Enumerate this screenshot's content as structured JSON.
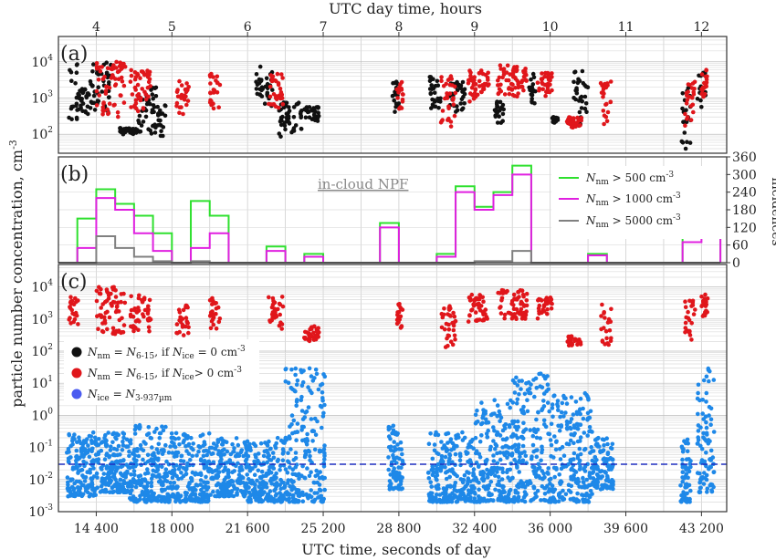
{
  "figure": {
    "top_axis_label": "UTC day time, hours",
    "bottom_axis_label": "UTC time, seconds of day",
    "y_axis_label": "particle number concentration, cm",
    "y_axis_label_sup": "-3",
    "right_axis_label": "incidences",
    "top_ticks": [
      "4",
      "5",
      "6",
      "7",
      "8",
      "9",
      "10",
      "11",
      "12"
    ],
    "bottom_ticks": [
      "14 400",
      "18 000",
      "21 600",
      "25 200",
      "28 800",
      "32 400",
      "36 000",
      "39 600",
      "43 200"
    ]
  },
  "panels": {
    "a": {
      "label": "(a)"
    },
    "b": {
      "label": "(b)",
      "annotation": "in-cloud NPF"
    },
    "c": {
      "label": "(c)"
    }
  },
  "colors": {
    "black_points": "#111111",
    "red_points": "#e0161b",
    "blue_points": "#1e88e8",
    "legend_blue": "#4a5bf0",
    "green_hist": "#2fe02f",
    "magenta_hist": "#e020e0",
    "grey_hist": "#808080",
    "dashed_line": "#1f2fbf"
  },
  "legend_b": [
    {
      "sym": "N",
      "sub": "nm",
      "text": " > 500 cm",
      "sup": "-3"
    },
    {
      "sym": "N",
      "sub": "nm",
      "text": " > 1000 cm",
      "sup": "-3"
    },
    {
      "sym": "N",
      "sub": "nm",
      "text": " > 5000 cm",
      "sup": "-3"
    }
  ],
  "legend_c": [
    {
      "a": "N",
      "asub": "nm",
      "eq": " = ",
      "b": "N",
      "bsub": "6-15",
      "if": ", if ",
      "c": "N",
      "csub": "ice",
      "cond": " = 0 cm",
      "sup": "-3"
    },
    {
      "a": "N",
      "asub": "nm",
      "eq": " = ",
      "b": "N",
      "bsub": "6-15",
      "if": ", if ",
      "c": "N",
      "csub": "ice",
      "cond": "> 0 cm",
      "sup": "-3"
    },
    {
      "a": "N",
      "asub": "ice",
      "eq": " = ",
      "b": "N",
      "bsub": "3-937µm"
    }
  ],
  "chart_data": [
    {
      "type": "scatter",
      "panel": "a",
      "x_unit": "seconds of day",
      "xlim": [
        12600,
        44400
      ],
      "ylim": [
        30,
        50000
      ],
      "y_scale": "log",
      "y_ticks": [
        "10",
        "10",
        "10"
      ],
      "y_tick_exp": [
        "2",
        "3",
        "4"
      ],
      "grid": true,
      "series": [
        {
          "name": "black",
          "segments": [
            {
              "x": [
                13100,
                13500
              ],
              "y_range": [
                200,
                10000
              ]
            },
            {
              "x": [
                13500,
                14200
              ],
              "y_range": [
                300,
                3000
              ]
            },
            {
              "x": [
                14200,
                15100
              ],
              "y_range": [
                400,
                10000
              ]
            },
            {
              "x": [
                15500,
                16400
              ],
              "y_range": [
                100,
                150
              ]
            },
            {
              "x": [
                16400,
                17300
              ],
              "y_range": [
                90,
                2000
              ]
            },
            {
              "x": [
                17300,
                17700
              ],
              "y_range": [
                70,
                800
              ]
            },
            {
              "x": [
                22000,
                22800
              ],
              "y_range": [
                500,
                8000
              ]
            },
            {
              "x": [
                23100,
                24200
              ],
              "y_range": [
                70,
                800
              ]
            },
            {
              "x": [
                24300,
                25000
              ],
              "y_range": [
                200,
                600
              ]
            },
            {
              "x": [
                28500,
                28800
              ],
              "y_range": [
                400,
                3000
              ]
            },
            {
              "x": [
                30200,
                30800
              ],
              "y_range": [
                500,
                5000
              ]
            },
            {
              "x": [
                31200,
                32000
              ],
              "y_range": [
                400,
                3000
              ]
            },
            {
              "x": [
                33300,
                33800
              ],
              "y_range": [
                200,
                800
              ]
            },
            {
              "x": [
                35000,
                35300
              ],
              "y_range": [
                600,
                5000
              ]
            },
            {
              "x": [
                36100,
                36400
              ],
              "y_range": [
                200,
                300
              ]
            },
            {
              "x": [
                37100,
                37800
              ],
              "y_range": [
                150,
                6000
              ]
            },
            {
              "x": [
                42200,
                42700
              ],
              "y_range": [
                40,
                3000
              ]
            },
            {
              "x": [
                43000,
                43400
              ],
              "y_range": [
                500,
                5000
              ]
            }
          ]
        },
        {
          "name": "red",
          "segments": [
            {
              "x": [
                14400,
                15800
              ],
              "y_range": [
                300,
                10000
              ]
            },
            {
              "x": [
                16000,
                17000
              ],
              "y_range": [
                400,
                6000
              ]
            },
            {
              "x": [
                18200,
                18800
              ],
              "y_range": [
                300,
                3000
              ]
            },
            {
              "x": [
                19800,
                20300
              ],
              "y_range": [
                500,
                5000
              ]
            },
            {
              "x": [
                22600,
                23300
              ],
              "y_range": [
                400,
                5000
              ]
            },
            {
              "x": [
                28700,
                29000
              ],
              "y_range": [
                500,
                3000
              ]
            },
            {
              "x": [
                30800,
                31500
              ],
              "y_range": [
                100,
                4000
              ]
            },
            {
              "x": [
                32100,
                33100
              ],
              "y_range": [
                800,
                6000
              ]
            },
            {
              "x": [
                33500,
                34900
              ],
              "y_range": [
                1000,
                8000
              ]
            },
            {
              "x": [
                35400,
                36100
              ],
              "y_range": [
                1000,
                5000
              ]
            },
            {
              "x": [
                36800,
                37500
              ],
              "y_range": [
                150,
                300
              ]
            },
            {
              "x": [
                38400,
                38900
              ],
              "y_range": [
                150,
                3000
              ]
            },
            {
              "x": [
                42400,
                42900
              ],
              "y_range": [
                150,
                4000
              ]
            },
            {
              "x": [
                43200,
                43500
              ],
              "y_range": [
                1000,
                6000
              ]
            }
          ]
        }
      ]
    },
    {
      "type": "histogram",
      "panel": "b",
      "xlim": [
        12600,
        44400
      ],
      "ylim": [
        0,
        360
      ],
      "y_ticks": [
        0,
        60,
        120,
        180,
        240,
        300,
        360
      ],
      "bin_edges": [
        12600,
        13500,
        14400,
        15300,
        16200,
        17100,
        18000,
        18900,
        19800,
        20700,
        21600,
        22500,
        23400,
        24300,
        25200,
        26100,
        27000,
        27900,
        28800,
        29700,
        30600,
        31500,
        32400,
        33300,
        34200,
        35100,
        36000,
        36900,
        37800,
        38700,
        39600,
        40500,
        41400,
        42300,
        43200,
        44100
      ],
      "series": [
        {
          "name": "N_nm > 500 cm-3",
          "values": [
            0,
            150,
            250,
            200,
            160,
            100,
            0,
            210,
            160,
            0,
            0,
            55,
            0,
            30,
            0,
            0,
            0,
            135,
            0,
            0,
            30,
            260,
            190,
            240,
            330,
            0,
            0,
            0,
            30,
            0,
            0,
            0,
            0,
            90,
            120
          ]
        },
        {
          "name": "N_nm > 1000 cm-3",
          "values": [
            0,
            50,
            220,
            180,
            100,
            40,
            0,
            50,
            100,
            0,
            0,
            40,
            0,
            20,
            0,
            0,
            0,
            120,
            0,
            0,
            20,
            240,
            180,
            230,
            300,
            0,
            0,
            0,
            25,
            0,
            0,
            0,
            0,
            70,
            100
          ]
        },
        {
          "name": "N_nm > 5000 cm-3",
          "values": [
            0,
            0,
            90,
            50,
            20,
            5,
            0,
            5,
            0,
            0,
            0,
            0,
            0,
            0,
            0,
            0,
            0,
            0,
            0,
            0,
            0,
            0,
            5,
            5,
            40,
            0,
            0,
            0,
            0,
            0,
            0,
            0,
            0,
            0,
            0
          ]
        }
      ]
    },
    {
      "type": "scatter",
      "panel": "c",
      "xlim": [
        12600,
        44400
      ],
      "ylim": [
        0.001,
        50000
      ],
      "y_scale": "log",
      "y_ticks": [
        "10",
        "10",
        "10",
        "10",
        "10",
        "10",
        "10",
        "10"
      ],
      "y_tick_exp": [
        "-3",
        "-2",
        "-1",
        "0",
        "1",
        "2",
        "3",
        "4"
      ],
      "dashed_line_y": 0.03,
      "series": [
        {
          "name": "N_nm = N_6-15, if N_ice > 0 cm-3",
          "segments": [
            {
              "x": [
                13100,
                13600
              ],
              "y_range": [
                600,
                5000
              ]
            },
            {
              "x": [
                14400,
                15800
              ],
              "y_range": [
                300,
                10000
              ]
            },
            {
              "x": [
                16000,
                17000
              ],
              "y_range": [
                400,
                6000
              ]
            },
            {
              "x": [
                18200,
                18800
              ],
              "y_range": [
                300,
                3000
              ]
            },
            {
              "x": [
                19800,
                20300
              ],
              "y_range": [
                500,
                5000
              ]
            },
            {
              "x": [
                22600,
                23300
              ],
              "y_range": [
                400,
                5000
              ]
            },
            {
              "x": [
                24300,
                25000
              ],
              "y_range": [
                200,
                600
              ]
            },
            {
              "x": [
                28700,
                29000
              ],
              "y_range": [
                500,
                3000
              ]
            },
            {
              "x": [
                30800,
                31500
              ],
              "y_range": [
                100,
                4000
              ]
            },
            {
              "x": [
                32100,
                33100
              ],
              "y_range": [
                800,
                6000
              ]
            },
            {
              "x": [
                33500,
                34900
              ],
              "y_range": [
                1000,
                8000
              ]
            },
            {
              "x": [
                35400,
                36100
              ],
              "y_range": [
                1000,
                5000
              ]
            },
            {
              "x": [
                36800,
                37500
              ],
              "y_range": [
                150,
                300
              ]
            },
            {
              "x": [
                38400,
                38900
              ],
              "y_range": [
                150,
                3000
              ]
            },
            {
              "x": [
                42400,
                42900
              ],
              "y_range": [
                150,
                4000
              ]
            },
            {
              "x": [
                43200,
                43500
              ],
              "y_range": [
                1000,
                6000
              ]
            }
          ]
        },
        {
          "name": "N_ice = N_3-937µm",
          "segments": [
            {
              "x": [
                13000,
                14400
              ],
              "y_range": [
                0.003,
                0.3
              ]
            },
            {
              "x": [
                14400,
                16000
              ],
              "y_range": [
                0.004,
                0.3
              ]
            },
            {
              "x": [
                16000,
                18000
              ],
              "y_range": [
                0.002,
                0.5
              ]
            },
            {
              "x": [
                18000,
                19800
              ],
              "y_range": [
                0.002,
                0.3
              ]
            },
            {
              "x": [
                19800,
                21600
              ],
              "y_range": [
                0.003,
                0.2
              ]
            },
            {
              "x": [
                21600,
                23400
              ],
              "y_range": [
                0.002,
                0.2
              ]
            },
            {
              "x": [
                23400,
                25300
              ],
              "y_range": [
                0.002,
                30
              ]
            },
            {
              "x": [
                28300,
                29000
              ],
              "y_range": [
                0.005,
                0.5
              ]
            },
            {
              "x": [
                30200,
                32400
              ],
              "y_range": [
                0.002,
                0.3
              ]
            },
            {
              "x": [
                32400,
                34200
              ],
              "y_range": [
                0.002,
                3
              ]
            },
            {
              "x": [
                34200,
                36000
              ],
              "y_range": [
                0.002,
                20
              ]
            },
            {
              "x": [
                36000,
                38000
              ],
              "y_range": [
                0.002,
                5
              ]
            },
            {
              "x": [
                38000,
                39000
              ],
              "y_range": [
                0.005,
                0.2
              ]
            },
            {
              "x": [
                42200,
                42700
              ],
              "y_range": [
                0.002,
                0.2
              ]
            },
            {
              "x": [
                43000,
                43800
              ],
              "y_range": [
                0.004,
                30
              ]
            }
          ]
        }
      ]
    }
  ]
}
